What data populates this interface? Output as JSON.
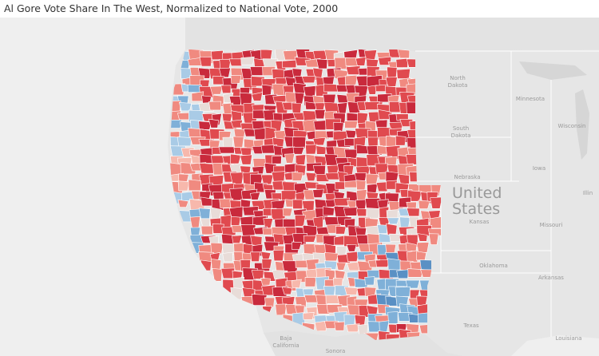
{
  "view": {
    "title": "Al Gore Vote Share In The West, Normalized to National Vote, 2000"
  },
  "map": {
    "country_label": [
      "United",
      "States"
    ],
    "state_labels": [
      {
        "id": "north-dakota",
        "text": [
          "North",
          "Dakota"
        ]
      },
      {
        "id": "minnesota",
        "text": [
          "Minnesota"
        ]
      },
      {
        "id": "south-dakota",
        "text": [
          "South",
          "Dakota"
        ]
      },
      {
        "id": "wisconsin",
        "text": [
          "Wisconsin"
        ]
      },
      {
        "id": "nebraska",
        "text": [
          "Nebraska"
        ]
      },
      {
        "id": "iowa",
        "text": [
          "Iowa"
        ]
      },
      {
        "id": "illinois",
        "text": [
          "Illin"
        ]
      },
      {
        "id": "kansas",
        "text": [
          "Kansas"
        ]
      },
      {
        "id": "missouri",
        "text": [
          "Missouri"
        ]
      },
      {
        "id": "oklahoma",
        "text": [
          "Oklahoma"
        ]
      },
      {
        "id": "arkansas",
        "text": [
          "Arkansas"
        ]
      },
      {
        "id": "texas",
        "text": [
          "Texas"
        ]
      },
      {
        "id": "louisiana",
        "text": [
          "Louisiana"
        ]
      },
      {
        "id": "baja-california",
        "text": [
          "Baja",
          "California"
        ]
      },
      {
        "id": "sonora",
        "text": [
          "Sonora"
        ]
      }
    ],
    "colors": {
      "background": "#e6e6e6",
      "land": "#dcdcdc",
      "lake": "#d0d0d0",
      "strong_red": "#c92a3c",
      "red": "#e04a4f",
      "light_red": "#f08a80",
      "pale_red": "#f7b8ac",
      "neutral": "#e8dcd8",
      "light_blue": "#a9cbe6",
      "blue": "#7fb0d8",
      "dark_blue": "#5a90c4"
    }
  }
}
